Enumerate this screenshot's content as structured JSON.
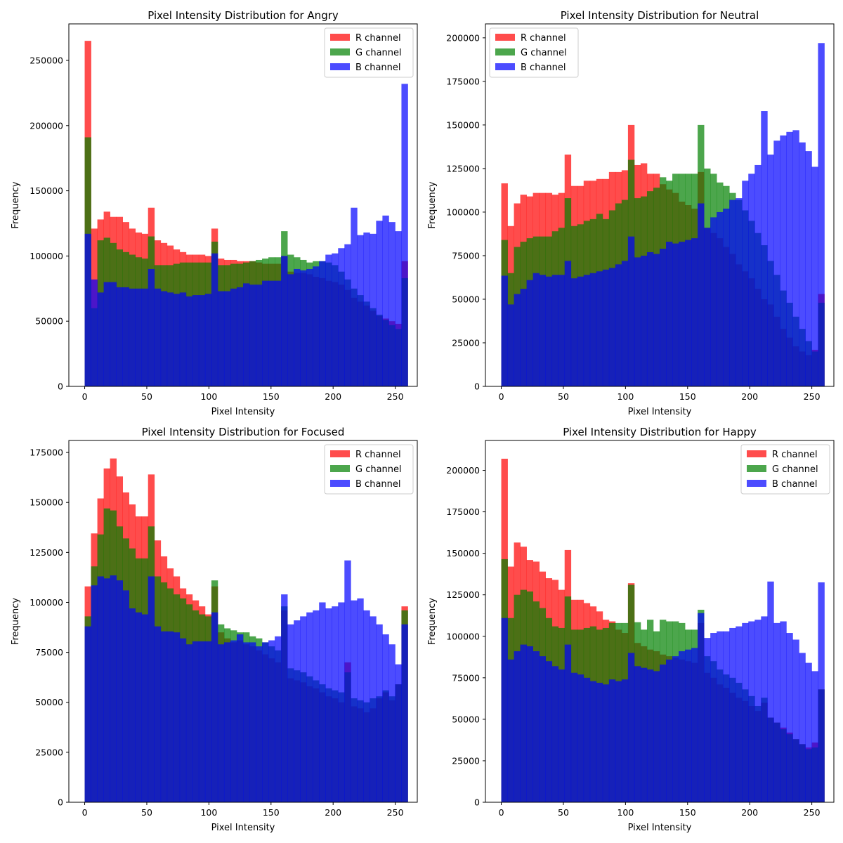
{
  "figure": {
    "background": "#ffffff"
  },
  "style": {
    "colors": {
      "R": "#ff0000",
      "G": "#008000",
      "B": "#0000ff"
    },
    "alpha": 0.7
  },
  "chart_data": [
    {
      "type": "histogram",
      "title": "Pixel Intensity Distribution for Angry",
      "xlabel": "Pixel Intensity",
      "ylabel": "Frequency",
      "xlim": [
        -12.75,
        267.75
      ],
      "ylim": [
        0,
        278000
      ],
      "xticks": [
        0,
        50,
        100,
        150,
        200,
        250
      ],
      "yticks": [
        0,
        50000,
        100000,
        150000,
        200000,
        250000
      ],
      "bin_start": 0,
      "bin_width": 5.1,
      "legend_position": "upper right",
      "series": [
        {
          "name": "R channel",
          "channel": "R",
          "values": [
            265000,
            121000,
            128000,
            134000,
            130000,
            130000,
            126000,
            121000,
            118000,
            117000,
            137000,
            112000,
            110000,
            108000,
            105000,
            103000,
            101000,
            101000,
            101000,
            100000,
            121000,
            98000,
            97000,
            97000,
            96000,
            96000,
            96000,
            95000,
            94000,
            94000,
            94000,
            100000,
            88000,
            87000,
            87000,
            86000,
            84000,
            83000,
            81000,
            80000,
            78000,
            74000,
            68000,
            65000,
            62000,
            58000,
            54000,
            52000,
            50000,
            48000,
            96000
          ]
        },
        {
          "name": "G channel",
          "channel": "G",
          "values": [
            191000,
            60000,
            112000,
            114000,
            110000,
            105000,
            103000,
            101000,
            99000,
            98000,
            115000,
            93000,
            93000,
            93000,
            94000,
            95000,
            95000,
            95000,
            95000,
            95000,
            111000,
            93000,
            93000,
            94000,
            94000,
            95000,
            96000,
            97000,
            98000,
            99000,
            99000,
            119000,
            101000,
            99000,
            97000,
            95000,
            96000,
            96000,
            95000,
            93000,
            88000,
            82000,
            75000,
            70000,
            65000,
            60000,
            55000,
            51000,
            47000,
            44000,
            83000
          ]
        },
        {
          "name": "B channel",
          "channel": "B",
          "values": [
            117000,
            82000,
            72000,
            80000,
            80000,
            76000,
            76000,
            75000,
            75000,
            75000,
            90000,
            75000,
            73000,
            72000,
            71000,
            72000,
            69000,
            70000,
            70000,
            71000,
            102000,
            73000,
            73000,
            75000,
            76000,
            79000,
            78000,
            78000,
            81000,
            81000,
            81000,
            100000,
            86000,
            90000,
            89000,
            90000,
            92000,
            96000,
            101000,
            102000,
            106000,
            109000,
            137000,
            116000,
            118000,
            117000,
            127000,
            131000,
            126000,
            119000,
            232000
          ]
        }
      ]
    },
    {
      "type": "histogram",
      "title": "Pixel Intensity Distribution for Neutral",
      "xlabel": "Pixel Intensity",
      "ylabel": "Frequency",
      "xlim": [
        -12.75,
        267.75
      ],
      "ylim": [
        0,
        208000
      ],
      "xticks": [
        0,
        50,
        100,
        150,
        200,
        250
      ],
      "yticks": [
        0,
        25000,
        50000,
        75000,
        100000,
        125000,
        150000,
        175000,
        200000
      ],
      "bin_start": 0,
      "bin_width": 5.1,
      "legend_position": "upper left",
      "series": [
        {
          "name": "R channel",
          "channel": "R",
          "values": [
            116500,
            92000,
            105000,
            110000,
            109000,
            111000,
            111000,
            111000,
            110000,
            111000,
            133000,
            115000,
            115000,
            118000,
            118000,
            119000,
            119000,
            123000,
            123000,
            124000,
            150000,
            127000,
            128000,
            122000,
            122000,
            116000,
            113000,
            111000,
            106000,
            104000,
            102000,
            123000,
            91000,
            88000,
            85000,
            80000,
            76000,
            70000,
            66000,
            62000,
            56000,
            50000,
            47000,
            40000,
            33000,
            28000,
            23000,
            20000,
            18000,
            21000,
            53000
          ]
        },
        {
          "name": "G channel",
          "channel": "G",
          "values": [
            84000,
            65000,
            80000,
            83000,
            85000,
            86000,
            86000,
            86000,
            89000,
            91000,
            108000,
            92000,
            93000,
            95000,
            96000,
            99000,
            96000,
            101000,
            105000,
            107000,
            130000,
            108000,
            109000,
            112000,
            114000,
            120000,
            118000,
            122000,
            122000,
            122000,
            122000,
            150000,
            125000,
            122000,
            117000,
            115000,
            111000,
            107000,
            101000,
            95000,
            88000,
            81000,
            72000,
            64000,
            55000,
            48000,
            40000,
            33000,
            26000,
            20000,
            48000
          ]
        },
        {
          "name": "B channel",
          "channel": "B",
          "values": [
            63500,
            47000,
            53000,
            56000,
            61000,
            65000,
            64000,
            63000,
            64000,
            64000,
            72000,
            62000,
            63000,
            64000,
            65000,
            66000,
            67000,
            68000,
            70000,
            72000,
            86000,
            74000,
            75000,
            77000,
            76000,
            79000,
            83000,
            82000,
            83000,
            84000,
            85000,
            105000,
            91000,
            97000,
            100000,
            102000,
            107000,
            108000,
            118000,
            122000,
            127000,
            158000,
            133000,
            141000,
            144000,
            146000,
            147000,
            140000,
            135000,
            126000,
            197000
          ]
        }
      ]
    },
    {
      "type": "histogram",
      "title": "Pixel Intensity Distribution for Focused",
      "xlabel": "Pixel Intensity",
      "ylabel": "Frequency",
      "xlim": [
        -12.75,
        267.75
      ],
      "ylim": [
        0,
        181000
      ],
      "xticks": [
        0,
        50,
        100,
        150,
        200,
        250
      ],
      "yticks": [
        0,
        25000,
        50000,
        75000,
        100000,
        125000,
        150000,
        175000
      ],
      "bin_start": 0,
      "bin_width": 5.1,
      "legend_position": "upper right",
      "series": [
        {
          "name": "R channel",
          "channel": "R",
          "values": [
            108000,
            134500,
            152000,
            167000,
            172000,
            163000,
            155000,
            149000,
            143000,
            143000,
            164000,
            131000,
            123000,
            117000,
            113000,
            107000,
            104000,
            101000,
            98000,
            94000,
            108000,
            85000,
            82000,
            80000,
            81000,
            79000,
            78000,
            76000,
            74000,
            72000,
            70000,
            96000,
            62000,
            61000,
            60000,
            58000,
            57000,
            55000,
            53000,
            52000,
            50000,
            70000,
            48000,
            47000,
            45000,
            47000,
            52000,
            55000,
            51000,
            59000,
            98000
          ]
        },
        {
          "name": "G channel",
          "channel": "G",
          "values": [
            93000,
            118000,
            134000,
            147000,
            146000,
            138000,
            132000,
            127000,
            122000,
            122000,
            138000,
            113000,
            110000,
            107000,
            104000,
            102000,
            99000,
            96000,
            94000,
            93000,
            111000,
            89000,
            87000,
            86000,
            85000,
            85000,
            83000,
            82000,
            80000,
            78000,
            76000,
            98000,
            67000,
            66000,
            65000,
            63000,
            61000,
            59000,
            57000,
            56000,
            55000,
            65000,
            52000,
            51000,
            50000,
            52000,
            53000,
            56000,
            53000,
            59000,
            96000
          ]
        },
        {
          "name": "B channel",
          "channel": "B",
          "values": [
            88000,
            108500,
            113000,
            112000,
            113500,
            111000,
            106000,
            97000,
            95000,
            94000,
            113000,
            88000,
            85500,
            85500,
            85000,
            82000,
            79000,
            80500,
            80500,
            80500,
            95000,
            79000,
            80000,
            81000,
            84000,
            80000,
            80000,
            78000,
            80000,
            81000,
            83000,
            104000,
            89000,
            91000,
            93000,
            95000,
            96000,
            100000,
            97000,
            98000,
            100000,
            121000,
            101000,
            102000,
            96000,
            93000,
            89000,
            84000,
            79000,
            69000,
            89000
          ]
        }
      ]
    },
    {
      "type": "histogram",
      "title": "Pixel Intensity Distribution for Happy",
      "xlabel": "Pixel Intensity",
      "ylabel": "Frequency",
      "xlim": [
        -12.75,
        267.75
      ],
      "ylim": [
        0,
        218000
      ],
      "xticks": [
        0,
        50,
        100,
        150,
        200,
        250
      ],
      "yticks": [
        0,
        25000,
        50000,
        75000,
        100000,
        125000,
        150000,
        175000,
        200000
      ],
      "bin_start": 0,
      "bin_width": 5.1,
      "legend_position": "upper right",
      "series": [
        {
          "name": "R channel",
          "channel": "R",
          "values": [
            207000,
            142000,
            156500,
            154000,
            146000,
            145000,
            139000,
            135000,
            134000,
            128000,
            152000,
            122000,
            122000,
            120000,
            118000,
            115000,
            110000,
            109000,
            104000,
            102000,
            132000,
            96000,
            94000,
            92000,
            91000,
            89000,
            88000,
            87000,
            86000,
            85000,
            84000,
            108000,
            78000,
            75000,
            71000,
            69000,
            66000,
            63000,
            61000,
            58000,
            55000,
            60000,
            51000,
            48000,
            45000,
            42000,
            38000,
            35000,
            33000,
            36000,
            68000
          ]
        },
        {
          "name": "G channel",
          "channel": "G",
          "values": [
            146500,
            111000,
            125000,
            128000,
            127000,
            121000,
            117000,
            111000,
            106000,
            105000,
            124000,
            104000,
            104000,
            105000,
            106000,
            104000,
            105000,
            108000,
            108000,
            108000,
            131000,
            108500,
            104000,
            110000,
            103000,
            110000,
            109000,
            109000,
            108000,
            104000,
            104000,
            116000,
            88000,
            85000,
            80000,
            77000,
            75000,
            72000,
            68000,
            64000,
            58000,
            63000,
            51000,
            48000,
            44000,
            41000,
            38000,
            35000,
            32000,
            33000,
            68000
          ]
        },
        {
          "name": "B channel",
          "channel": "B",
          "values": [
            111000,
            86000,
            91000,
            95000,
            94000,
            91000,
            88000,
            85000,
            82000,
            80000,
            95000,
            78000,
            77000,
            75000,
            73000,
            72000,
            71000,
            74000,
            73000,
            74000,
            90000,
            82000,
            81000,
            80000,
            79000,
            83000,
            86000,
            88000,
            91000,
            92000,
            93000,
            114000,
            99000,
            102000,
            103000,
            103000,
            105000,
            106000,
            108000,
            109000,
            110000,
            112000,
            133000,
            108000,
            109000,
            102000,
            98000,
            90000,
            84000,
            79000,
            132500
          ]
        }
      ]
    }
  ]
}
